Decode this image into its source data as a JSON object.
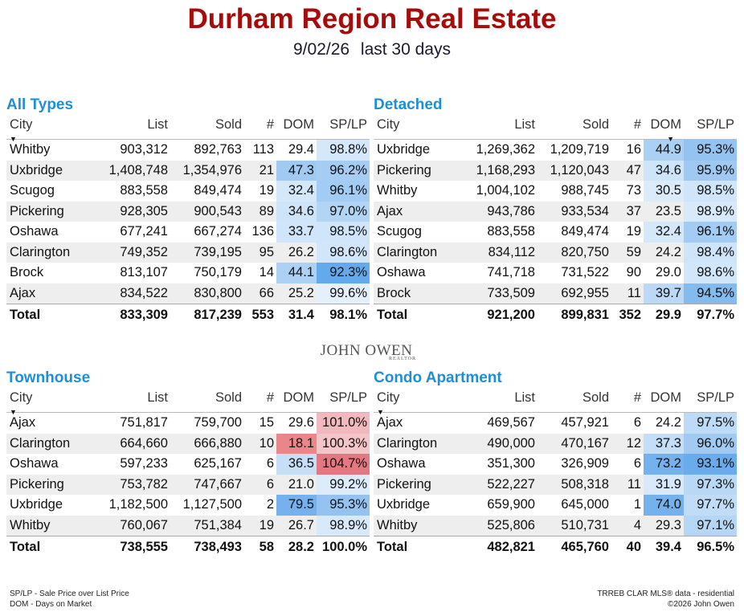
{
  "header": {
    "title": "Durham Region Real Estate",
    "date": "9/02/26",
    "period": "last 30 days"
  },
  "columns": {
    "city": "City",
    "list": "List",
    "sold": "Sold",
    "num": "#",
    "dom": "DOM",
    "splp": "SP/LP"
  },
  "panels": [
    {
      "id": "all",
      "title": "All Types",
      "sort_col": "city",
      "rows": [
        {
          "city": "Whitby",
          "list": "903,312",
          "sold": "892,763",
          "num": "113",
          "dom": "29.4",
          "splp": "98.8%",
          "dom_v": 29.4,
          "splp_v": 98.8
        },
        {
          "city": "Uxbridge",
          "list": "1,408,748",
          "sold": "1,354,976",
          "num": "21",
          "dom": "47.3",
          "splp": "96.2%",
          "dom_v": 47.3,
          "splp_v": 96.2
        },
        {
          "city": "Scugog",
          "list": "883,558",
          "sold": "849,474",
          "num": "19",
          "dom": "32.4",
          "splp": "96.1%",
          "dom_v": 32.4,
          "splp_v": 96.1
        },
        {
          "city": "Pickering",
          "list": "928,305",
          "sold": "900,543",
          "num": "89",
          "dom": "34.6",
          "splp": "97.0%",
          "dom_v": 34.6,
          "splp_v": 97.0
        },
        {
          "city": "Oshawa",
          "list": "677,241",
          "sold": "667,274",
          "num": "136",
          "dom": "33.7",
          "splp": "98.5%",
          "dom_v": 33.7,
          "splp_v": 98.5
        },
        {
          "city": "Clarington",
          "list": "749,352",
          "sold": "739,195",
          "num": "95",
          "dom": "26.2",
          "splp": "98.6%",
          "dom_v": 26.2,
          "splp_v": 98.6
        },
        {
          "city": "Brock",
          "list": "813,107",
          "sold": "750,179",
          "num": "14",
          "dom": "44.1",
          "splp": "92.3%",
          "dom_v": 44.1,
          "splp_v": 92.3
        },
        {
          "city": "Ajax",
          "list": "834,522",
          "sold": "830,800",
          "num": "66",
          "dom": "25.2",
          "splp": "99.6%",
          "dom_v": 25.2,
          "splp_v": 99.6
        }
      ],
      "total": {
        "city": "Total",
        "list": "833,309",
        "sold": "817,239",
        "num": "553",
        "dom": "31.4",
        "splp": "98.1%"
      }
    },
    {
      "id": "detached",
      "title": "Detached",
      "sort_col": "list",
      "rows": [
        {
          "city": "Uxbridge",
          "list": "1,269,362",
          "sold": "1,209,719",
          "num": "16",
          "dom": "44.9",
          "splp": "95.3%",
          "dom_v": 44.9,
          "splp_v": 95.3
        },
        {
          "city": "Pickering",
          "list": "1,168,293",
          "sold": "1,120,043",
          "num": "47",
          "dom": "34.6",
          "splp": "95.9%",
          "dom_v": 34.6,
          "splp_v": 95.9
        },
        {
          "city": "Whitby",
          "list": "1,004,102",
          "sold": "988,745",
          "num": "73",
          "dom": "30.5",
          "splp": "98.5%",
          "dom_v": 30.5,
          "splp_v": 98.5
        },
        {
          "city": "Ajax",
          "list": "943,786",
          "sold": "933,534",
          "num": "37",
          "dom": "23.5",
          "splp": "98.9%",
          "dom_v": 23.5,
          "splp_v": 98.9
        },
        {
          "city": "Scugog",
          "list": "883,558",
          "sold": "849,474",
          "num": "19",
          "dom": "32.4",
          "splp": "96.1%",
          "dom_v": 32.4,
          "splp_v": 96.1
        },
        {
          "city": "Clarington",
          "list": "834,112",
          "sold": "820,750",
          "num": "59",
          "dom": "24.2",
          "splp": "98.4%",
          "dom_v": 24.2,
          "splp_v": 98.4
        },
        {
          "city": "Oshawa",
          "list": "741,718",
          "sold": "731,522",
          "num": "90",
          "dom": "29.0",
          "splp": "98.6%",
          "dom_v": 29.0,
          "splp_v": 98.6
        },
        {
          "city": "Brock",
          "list": "733,509",
          "sold": "692,955",
          "num": "11",
          "dom": "39.7",
          "splp": "94.5%",
          "dom_v": 39.7,
          "splp_v": 94.5
        }
      ],
      "total": {
        "city": "Total",
        "list": "921,200",
        "sold": "899,831",
        "num": "352",
        "dom": "29.9",
        "splp": "97.7%"
      }
    },
    {
      "id": "townhouse",
      "title": "Townhouse",
      "sort_col": "city",
      "rows": [
        {
          "city": "Ajax",
          "list": "751,817",
          "sold": "759,700",
          "num": "15",
          "dom": "29.6",
          "splp": "101.0%",
          "dom_v": 29.6,
          "splp_v": 101.0
        },
        {
          "city": "Clarington",
          "list": "664,660",
          "sold": "666,880",
          "num": "10",
          "dom": "18.1",
          "splp": "100.3%",
          "dom_v": 18.1,
          "splp_v": 100.3
        },
        {
          "city": "Oshawa",
          "list": "597,233",
          "sold": "625,167",
          "num": "6",
          "dom": "36.5",
          "splp": "104.7%",
          "dom_v": 36.5,
          "splp_v": 104.7
        },
        {
          "city": "Pickering",
          "list": "753,782",
          "sold": "747,667",
          "num": "6",
          "dom": "21.0",
          "splp": "99.2%",
          "dom_v": 21.0,
          "splp_v": 99.2
        },
        {
          "city": "Uxbridge",
          "list": "1,182,500",
          "sold": "1,127,500",
          "num": "2",
          "dom": "79.5",
          "splp": "95.3%",
          "dom_v": 79.5,
          "splp_v": 95.3
        },
        {
          "city": "Whitby",
          "list": "760,067",
          "sold": "751,384",
          "num": "19",
          "dom": "26.7",
          "splp": "98.9%",
          "dom_v": 26.7,
          "splp_v": 98.9
        }
      ],
      "total": {
        "city": "Total",
        "list": "738,555",
        "sold": "738,493",
        "num": "58",
        "dom": "28.2",
        "splp": "100.0%"
      }
    },
    {
      "id": "condo",
      "title": "Condo Apartment",
      "sort_col": "city",
      "rows": [
        {
          "city": "Ajax",
          "list": "469,567",
          "sold": "457,921",
          "num": "6",
          "dom": "24.2",
          "splp": "97.5%",
          "dom_v": 24.2,
          "splp_v": 97.5
        },
        {
          "city": "Clarington",
          "list": "490,000",
          "sold": "470,167",
          "num": "12",
          "dom": "37.3",
          "splp": "96.0%",
          "dom_v": 37.3,
          "splp_v": 96.0
        },
        {
          "city": "Oshawa",
          "list": "351,300",
          "sold": "326,909",
          "num": "6",
          "dom": "73.2",
          "splp": "93.1%",
          "dom_v": 73.2,
          "splp_v": 93.1
        },
        {
          "city": "Pickering",
          "list": "522,227",
          "sold": "508,318",
          "num": "11",
          "dom": "31.9",
          "splp": "97.3%",
          "dom_v": 31.9,
          "splp_v": 97.3
        },
        {
          "city": "Uxbridge",
          "list": "659,900",
          "sold": "645,000",
          "num": "1",
          "dom": "74.0",
          "splp": "97.7%",
          "dom_v": 74.0,
          "splp_v": 97.7
        },
        {
          "city": "Whitby",
          "list": "525,806",
          "sold": "510,731",
          "num": "4",
          "dom": "29.3",
          "splp": "97.1%",
          "dom_v": 29.3,
          "splp_v": 97.1
        }
      ],
      "total": {
        "city": "Total",
        "list": "482,821",
        "sold": "465,760",
        "num": "40",
        "dom": "39.4",
        "splp": "96.5%"
      }
    }
  ],
  "logo": {
    "name": "JOHN OWEN",
    "tagline": "REALTOR"
  },
  "footer": {
    "legend_1": "SP/LP - Sale Price over List Price",
    "legend_2": "DOM - Days on Market",
    "source": "TRREB CLAR MLS® data - residential",
    "copyright": "©2026 John Owen"
  },
  "colors": {
    "title": "#a50d0d",
    "section": "#1e8fd6",
    "high_dom": "#e8868a",
    "high_splp": "#e16a70"
  }
}
